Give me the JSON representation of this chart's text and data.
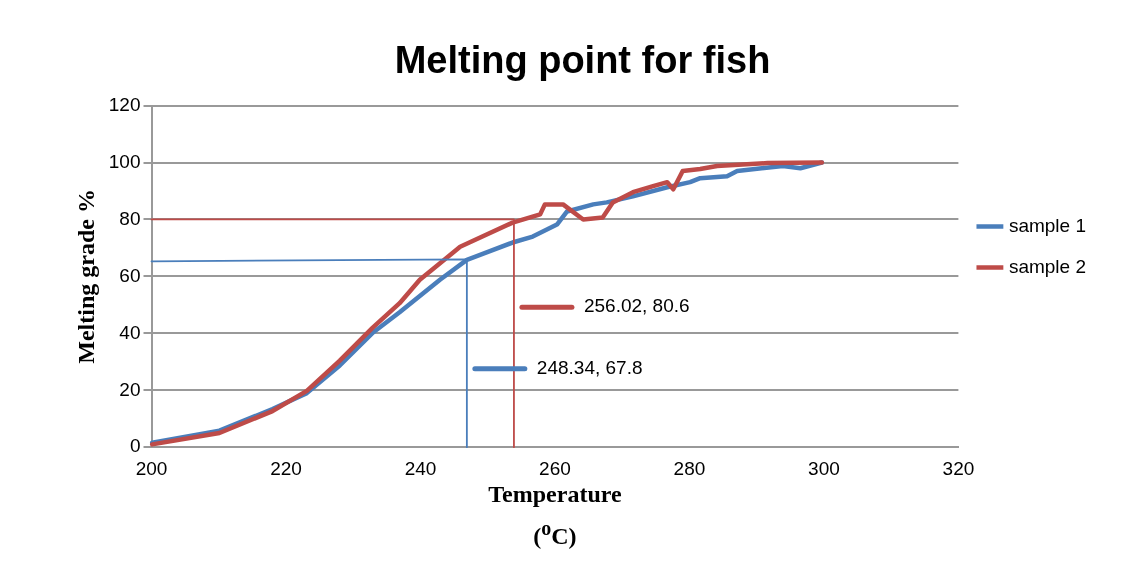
{
  "chart_data": {
    "type": "line",
    "title": "Melting point for fish",
    "xlabel": "Temperature ($^{o}$C)",
    "ylabel": "Melting grade %",
    "xlim": [
      200,
      320
    ],
    "xticks": [
      200,
      220,
      240,
      260,
      280,
      300,
      320
    ],
    "ylim": [
      0,
      120
    ],
    "yticks": [
      0,
      20,
      40,
      60,
      80,
      100,
      120
    ],
    "grid": "y",
    "legend": "right",
    "marker": "none",
    "line_style": "solid",
    "annotations": [
      "256.02, 80.6",
      "248.34, 67.8"
    ],
    "series": [
      {
        "name": "sample 1",
        "color": "#4a7ebb",
        "x": [
          200.1,
          210.1,
          218,
          223.1,
          228,
          233,
          236.9,
          242.9,
          246.9,
          253.7,
          256.7,
          260.3,
          261.8,
          265.7,
          267.7,
          271.6,
          276.7,
          280.1,
          281.6,
          285.6,
          287.1,
          293.9,
          296.5,
          299.7
        ],
        "values": [
          1.6,
          5.8,
          13.4,
          19,
          28.7,
          40.4,
          47.4,
          58.8,
          65.8,
          71.9,
          74,
          78.2,
          82.8,
          85.3,
          86,
          88.1,
          91.3,
          93.1,
          94.5,
          95.2,
          97,
          98.8,
          98,
          100
        ]
      },
      {
        "name": "sample 2",
        "color": "#be4b48",
        "x": [
          200.1,
          210.1,
          218,
          223.1,
          228,
          232.9,
          236.9,
          239.9,
          245.9,
          253.7,
          257.8,
          258.5,
          261.2,
          264.2,
          267.1,
          268.6,
          271.6,
          274.6,
          276.7,
          277.6,
          279,
          281.6,
          284.1,
          291.6,
          299.7
        ],
        "values": [
          1,
          5,
          12.7,
          19.8,
          30.4,
          42,
          50.6,
          58.8,
          70.4,
          78.9,
          81.8,
          85.3,
          85.3,
          80,
          80.7,
          86,
          89.6,
          91.7,
          93.1,
          90.6,
          97,
          97.7,
          98.8,
          99.8,
          100
        ]
      },
      {
        "color": "#be4b48",
        "x": [
          200,
          253.9,
          253.9
        ],
        "values": [
          80,
          80,
          0
        ]
      },
      {
        "color": "#4a7ebb",
        "x": [
          200,
          246.9,
          246.9
        ],
        "values": [
          65.3,
          66,
          0
        ]
      }
    ]
  }
}
